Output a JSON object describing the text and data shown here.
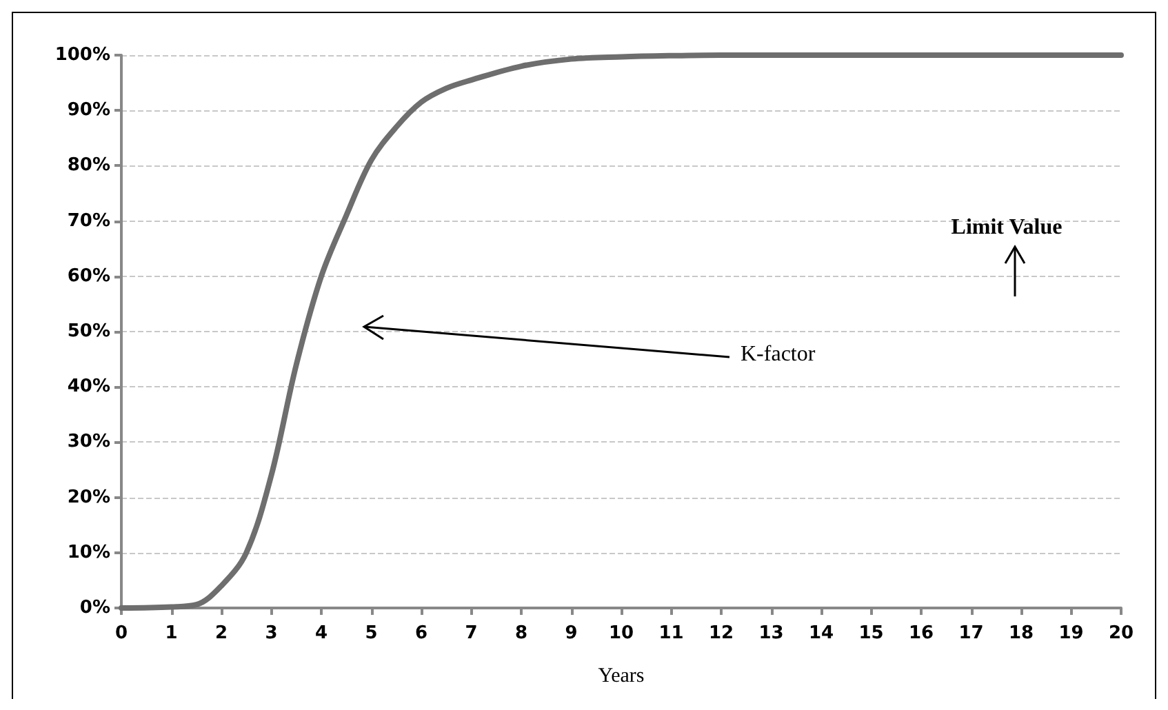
{
  "chart_data": {
    "type": "line",
    "xlabel": "Years",
    "x": [
      0,
      1,
      1.5,
      2,
      2.5,
      3,
      3.5,
      4,
      4.5,
      5,
      5.5,
      6,
      6.5,
      7,
      8,
      9,
      10,
      11,
      12,
      14,
      16,
      18,
      20
    ],
    "series": [
      {
        "color": "#6e6e6e",
        "values": [
          0,
          0.2,
          0.6,
          4,
          10,
          24,
          44,
          60,
          71,
          81,
          87,
          91.5,
          94,
          95.5,
          98,
          99.3,
          99.7,
          99.9,
          100,
          100,
          100,
          100,
          100
        ]
      }
    ],
    "xlim": [
      0,
      20
    ],
    "xticks": [
      0,
      1,
      2,
      3,
      4,
      5,
      6,
      7,
      8,
      9,
      10,
      11,
      12,
      13,
      14,
      15,
      16,
      17,
      18,
      19,
      20
    ],
    "ylim": [
      0,
      100
    ],
    "yticks": [
      {
        "value": 0,
        "label": "0%"
      },
      {
        "value": 10,
        "label": "10%"
      },
      {
        "value": 20,
        "label": "20%"
      },
      {
        "value": 30,
        "label": "30%"
      },
      {
        "value": 40,
        "label": "40%"
      },
      {
        "value": 50,
        "label": "50%"
      },
      {
        "value": 60,
        "label": "60%"
      },
      {
        "value": 70,
        "label": "70%"
      },
      {
        "value": 80,
        "label": "80%"
      },
      {
        "value": 90,
        "label": "90%"
      },
      {
        "value": 100,
        "label": "100%"
      }
    ],
    "grid": "y",
    "marker": "none",
    "line_style": "solid",
    "annotations": [
      "K-factor",
      "Limit Value"
    ]
  }
}
